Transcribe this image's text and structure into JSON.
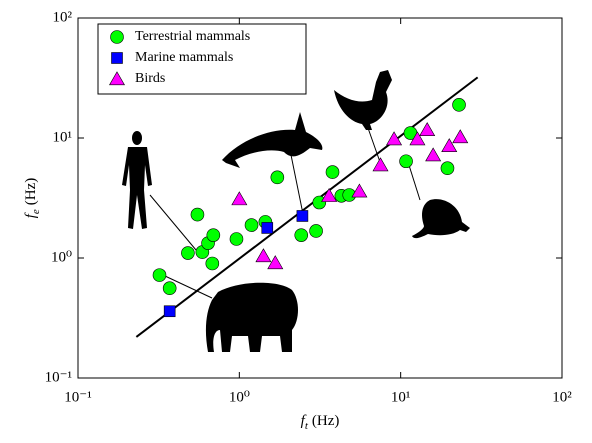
{
  "chart_data": {
    "type": "scatter",
    "x_label": {
      "symbol": "f",
      "subscript": "t",
      "unit": "(Hz)"
    },
    "y_label": {
      "symbol": "f",
      "subscript": "e",
      "unit": "(Hz)"
    },
    "log_x": true,
    "log_y": true,
    "legend": "upper left",
    "xlim": [
      0.1,
      100
    ],
    "ylim": [
      0.1,
      100
    ],
    "xticks": [
      {
        "value": 0.1,
        "label": "10⁻¹"
      },
      {
        "value": 1,
        "label": "10⁰"
      },
      {
        "value": 10,
        "label": "10¹"
      },
      {
        "value": 100,
        "label": "10²"
      }
    ],
    "yticks": [
      {
        "value": 0.1,
        "label": "10⁻¹"
      },
      {
        "value": 1,
        "label": "10⁰"
      },
      {
        "value": 10,
        "label": "10¹"
      },
      {
        "value": 100,
        "label": "10²"
      }
    ],
    "series": [
      {
        "name": "Terrestrial mammals",
        "marker": "circle",
        "color": "#00ff00",
        "x": [
          0.32,
          0.37,
          0.48,
          0.55,
          0.59,
          0.64,
          0.69,
          0.68,
          0.96,
          1.19,
          1.45,
          1.72,
          2.42,
          2.99,
          3.13,
          3.78,
          4.29,
          4.8,
          10.8,
          11.5,
          19.5,
          23
        ],
        "values": [
          0.72,
          0.56,
          1.1,
          2.3,
          1.12,
          1.33,
          1.55,
          0.9,
          1.44,
          1.88,
          2.0,
          4.7,
          1.55,
          1.68,
          2.9,
          5.2,
          3.3,
          3.35,
          6.4,
          11,
          5.6,
          18.9
        ]
      },
      {
        "name": "Marine mammals",
        "marker": "square",
        "color": "#0000ff",
        "x": [
          0.37,
          1.49,
          2.46
        ],
        "values": [
          0.36,
          1.78,
          2.24
        ]
      },
      {
        "name": "Birds",
        "marker": "triangle",
        "color": "#ff00ff",
        "x": [
          1.0,
          1.41,
          1.67,
          3.6,
          5.55,
          7.5,
          9.1,
          12.7,
          14.6,
          15.9,
          20,
          23.4
        ],
        "values": [
          3.1,
          1.04,
          0.91,
          3.3,
          3.6,
          5.95,
          9.8,
          9.8,
          11.7,
          7.2,
          8.6,
          10.2
        ]
      }
    ],
    "fit_line": {
      "color": "#000000",
      "x": [
        0.23,
        30
      ],
      "values": [
        0.22,
        32
      ]
    }
  }
}
